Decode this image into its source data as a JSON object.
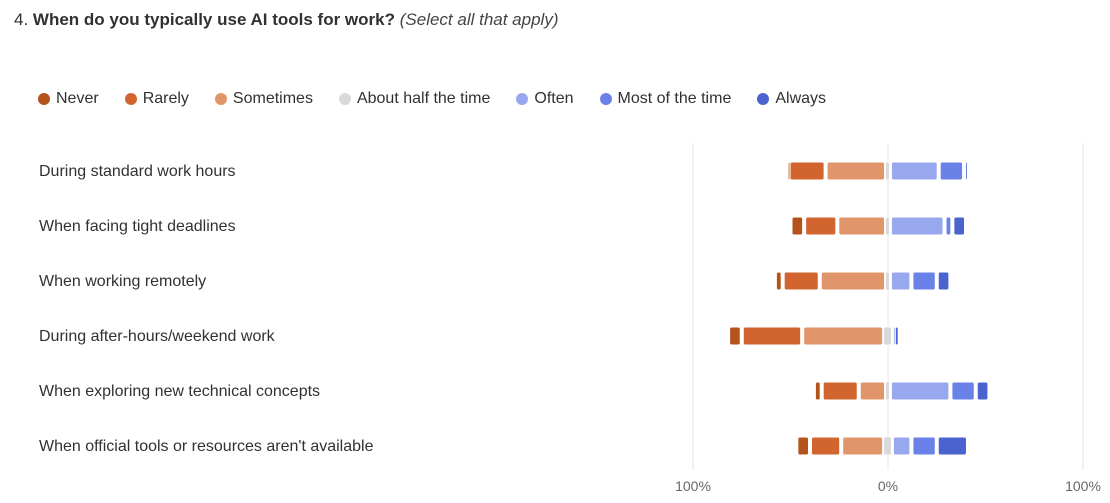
{
  "question": {
    "number": "4.",
    "text": "When do you typically use AI tools for work?",
    "note": "(Select all that apply)"
  },
  "legend": [
    {
      "label": "Never",
      "color": "#b5531c"
    },
    {
      "label": "Rarely",
      "color": "#d2642f"
    },
    {
      "label": "Sometimes",
      "color": "#e0956a"
    },
    {
      "label": "About half the time",
      "color": "#d9d9d9"
    },
    {
      "label": "Often",
      "color": "#97a8ee"
    },
    {
      "label": "Most of the time",
      "color": "#6a82e8"
    },
    {
      "label": "Always",
      "color": "#4a63cf"
    }
  ],
  "chart_data": {
    "type": "bar",
    "subtype": "diverging-stacked",
    "categories": [
      "During standard work hours",
      "When facing tight deadlines",
      "When working remotely",
      "During after-hours/weekend work",
      "When exploring new technical concepts",
      "When official tools or resources aren't available"
    ],
    "series": [
      {
        "name": "Never",
        "color": "#b5531c",
        "values": [
          1,
          7,
          4,
          7,
          4,
          7
        ]
      },
      {
        "name": "Rarely",
        "color": "#d2642f",
        "values": [
          19,
          17,
          19,
          31,
          19,
          16
        ]
      },
      {
        "name": "Sometimes",
        "color": "#e0956a",
        "values": [
          31,
          25,
          34,
          42,
          14,
          22
        ]
      },
      {
        "name": "About half the time",
        "color": "#d9d9d9",
        "values": [
          2,
          2,
          2,
          4,
          2,
          4
        ]
      },
      {
        "name": "Often",
        "color": "#97a8ee",
        "values": [
          25,
          28,
          11,
          1,
          31,
          10
        ]
      },
      {
        "name": "Most of the time",
        "color": "#6a82e8",
        "values": [
          13,
          4,
          13,
          0,
          13,
          13
        ]
      },
      {
        "name": "Always",
        "color": "#4a63cf",
        "values": [
          1,
          7,
          7,
          3,
          7,
          16
        ]
      }
    ],
    "x_ticks": [
      "100%",
      "0%",
      "100%"
    ],
    "xlim": [
      -100,
      100
    ]
  }
}
